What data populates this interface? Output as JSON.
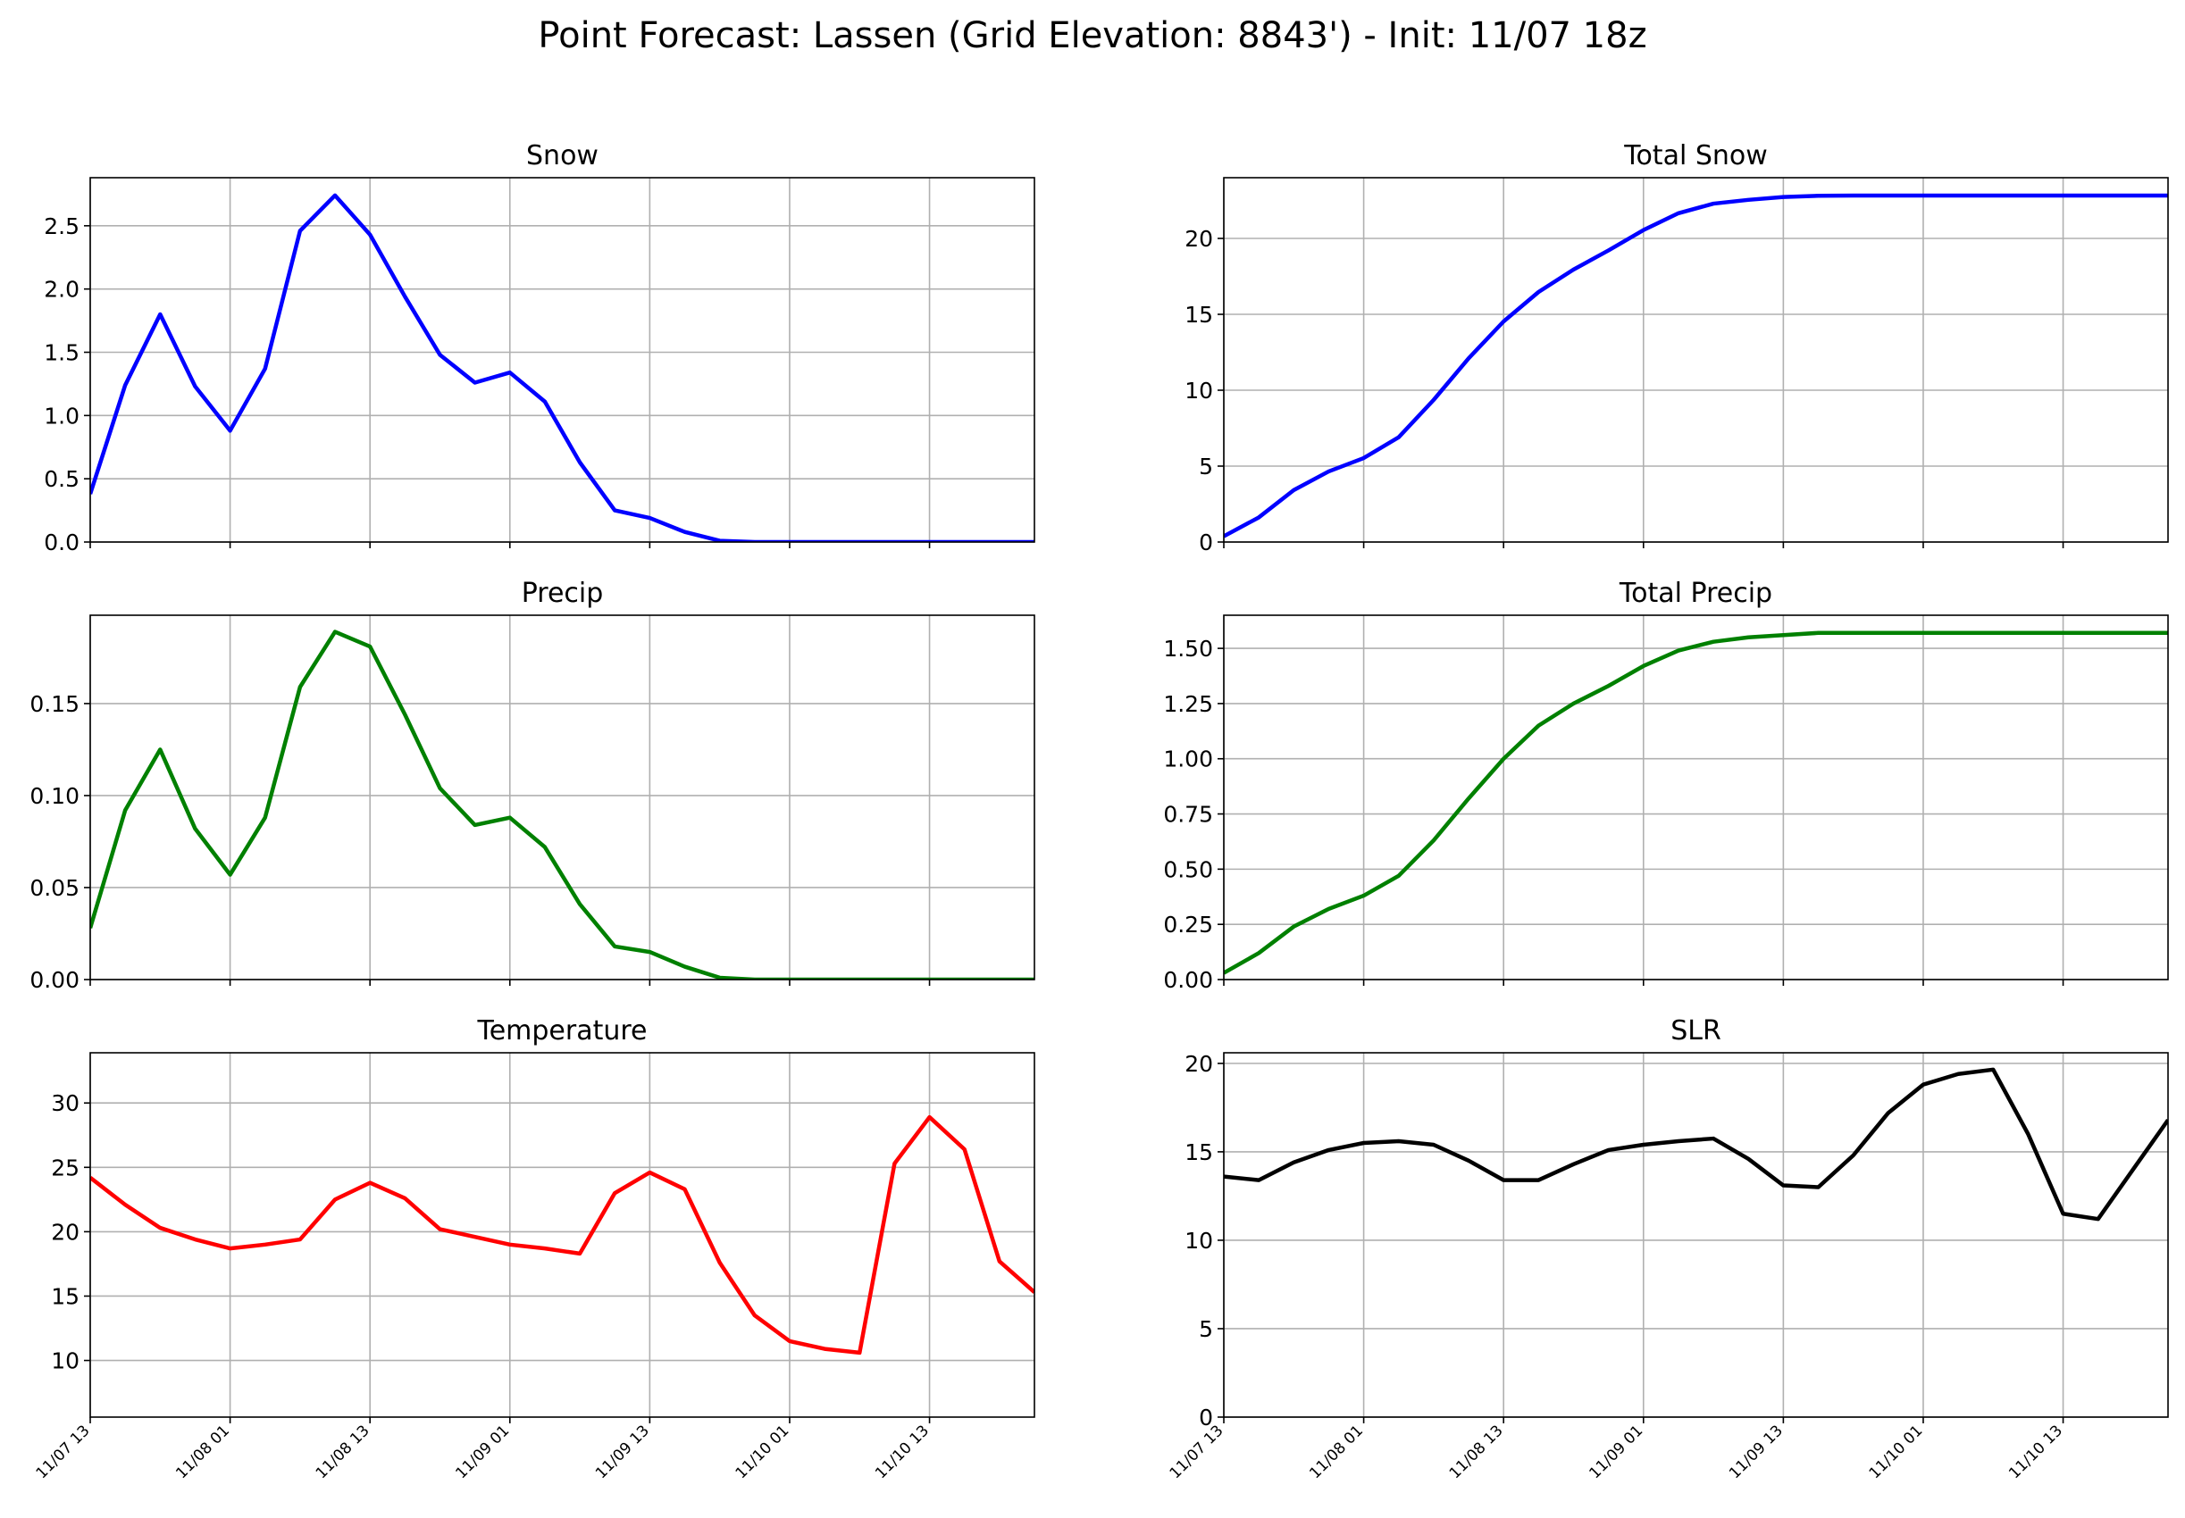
{
  "figure": {
    "title": "Point Forecast: Lassen (Grid Elevation: 8843') - Init: 11/07 18z"
  },
  "chart_data": [
    {
      "type": "line",
      "title": "Snow",
      "color": "#0000ff",
      "x": [
        0,
        3,
        6,
        9,
        12,
        15,
        18,
        21,
        24,
        27,
        30,
        33,
        36,
        39,
        42,
        45,
        48,
        51,
        54,
        57,
        60,
        63,
        66,
        69,
        72,
        75,
        78,
        81
      ],
      "y": [
        0.38,
        1.24,
        1.8,
        1.23,
        0.88,
        1.37,
        2.46,
        2.74,
        2.43,
        1.94,
        1.48,
        1.26,
        1.34,
        1.11,
        0.63,
        0.25,
        0.19,
        0.08,
        0.01,
        0,
        0,
        0,
        0,
        0,
        0,
        0,
        0,
        0
      ],
      "ylim": [
        0,
        2.88
      ],
      "yticks": [
        0,
        0.5,
        1.0,
        1.5,
        2.0,
        2.5
      ],
      "ytick_labels": [
        "0.0",
        "0.5",
        "1.0",
        "1.5",
        "2.0",
        "2.5"
      ],
      "show_xlabels": false
    },
    {
      "type": "line",
      "title": "Total Snow",
      "color": "#0000ff",
      "x": [
        0,
        3,
        6,
        9,
        12,
        15,
        18,
        21,
        24,
        27,
        30,
        33,
        36,
        39,
        42,
        45,
        48,
        51,
        54,
        57,
        60,
        63,
        66,
        69,
        72,
        75,
        78,
        81
      ],
      "y": [
        0.38,
        1.62,
        3.42,
        4.65,
        5.53,
        6.9,
        9.36,
        12.1,
        14.53,
        16.47,
        17.95,
        19.21,
        20.55,
        21.66,
        22.29,
        22.54,
        22.73,
        22.81,
        22.82,
        22.82,
        22.82,
        22.82,
        22.82,
        22.82,
        22.82,
        22.82,
        22.82,
        22.82
      ],
      "ylim": [
        0,
        24
      ],
      "yticks": [
        0,
        5,
        10,
        15,
        20
      ],
      "ytick_labels": [
        "0",
        "5",
        "10",
        "15",
        "20"
      ],
      "show_xlabels": false
    },
    {
      "type": "line",
      "title": "Precip",
      "color": "#008000",
      "x": [
        0,
        3,
        6,
        9,
        12,
        15,
        18,
        21,
        24,
        27,
        30,
        33,
        36,
        39,
        42,
        45,
        48,
        51,
        54,
        57,
        60,
        63,
        66,
        69,
        72,
        75,
        78,
        81
      ],
      "y": [
        0.028,
        0.092,
        0.125,
        0.082,
        0.057,
        0.088,
        0.159,
        0.189,
        0.181,
        0.144,
        0.104,
        0.084,
        0.088,
        0.072,
        0.041,
        0.018,
        0.015,
        0.007,
        0.001,
        0,
        0,
        0,
        0,
        0,
        0,
        0,
        0,
        0
      ],
      "ylim": [
        0,
        0.198
      ],
      "yticks": [
        0,
        0.05,
        0.1,
        0.15
      ],
      "ytick_labels": [
        "0.00",
        "0.05",
        "0.10",
        "0.15"
      ],
      "show_xlabels": false
    },
    {
      "type": "line",
      "title": "Total Precip",
      "color": "#008000",
      "x": [
        0,
        3,
        6,
        9,
        12,
        15,
        18,
        21,
        24,
        27,
        30,
        33,
        36,
        39,
        42,
        45,
        48,
        51,
        54,
        57,
        60,
        63,
        66,
        69,
        72,
        75,
        78,
        81
      ],
      "y": [
        0.03,
        0.12,
        0.24,
        0.32,
        0.38,
        0.47,
        0.63,
        0.82,
        1.0,
        1.15,
        1.25,
        1.33,
        1.42,
        1.49,
        1.53,
        1.55,
        1.56,
        1.57,
        1.57,
        1.57,
        1.57,
        1.57,
        1.57,
        1.57,
        1.57,
        1.57,
        1.57,
        1.57
      ],
      "ylim": [
        0,
        1.65
      ],
      "yticks": [
        0,
        0.25,
        0.5,
        0.75,
        1.0,
        1.25,
        1.5
      ],
      "ytick_labels": [
        "0.00",
        "0.25",
        "0.50",
        "0.75",
        "1.00",
        "1.25",
        "1.50"
      ],
      "show_xlabels": false
    },
    {
      "type": "line",
      "title": "Temperature",
      "color": "#ff0000",
      "x": [
        0,
        3,
        6,
        9,
        12,
        15,
        18,
        21,
        24,
        27,
        30,
        33,
        36,
        39,
        42,
        45,
        48,
        51,
        54,
        57,
        60,
        63,
        66,
        69,
        72,
        75,
        78,
        81
      ],
      "y": [
        24.2,
        22.1,
        20.3,
        19.4,
        18.7,
        19.0,
        19.4,
        22.5,
        23.8,
        22.6,
        20.2,
        19.6,
        19.0,
        18.7,
        18.3,
        23.0,
        24.6,
        23.3,
        17.6,
        13.5,
        11.5,
        10.9,
        10.6,
        25.3,
        28.9,
        26.4,
        17.7,
        15.3
      ],
      "ylim": [
        5.6,
        33.9
      ],
      "yticks": [
        10,
        15,
        20,
        25,
        30
      ],
      "ytick_labels": [
        "10",
        "15",
        "20",
        "25",
        "30"
      ],
      "show_xlabels": true
    },
    {
      "type": "line",
      "title": "SLR",
      "color": "#000000",
      "x": [
        0,
        3,
        6,
        9,
        12,
        15,
        18,
        21,
        24,
        27,
        30,
        33,
        36,
        39,
        42,
        45,
        48,
        51,
        54,
        57,
        60,
        63,
        66,
        69,
        72,
        75,
        78,
        81
      ],
      "y": [
        13.6,
        13.4,
        14.4,
        15.1,
        15.5,
        15.6,
        15.4,
        14.5,
        13.4,
        13.4,
        14.3,
        15.1,
        15.4,
        15.6,
        15.75,
        14.6,
        13.1,
        13.0,
        14.8,
        17.2,
        18.8,
        19.4,
        19.65,
        16.0,
        11.5,
        11.2,
        14.0,
        16.8
      ],
      "ylim": [
        0,
        20.6
      ],
      "yticks": [
        0,
        5,
        10,
        15,
        20
      ],
      "ytick_labels": [
        "0",
        "5",
        "10",
        "15",
        "20"
      ],
      "show_xlabels": true
    }
  ],
  "x_ticks": {
    "positions": [
      0,
      12,
      24,
      36,
      48,
      60,
      72
    ],
    "labels": [
      "11/07 13",
      "11/08 01",
      "11/08 13",
      "11/09 01",
      "11/09 13",
      "11/10 01",
      "11/10 13"
    ],
    "xlim": [
      0,
      81
    ]
  }
}
